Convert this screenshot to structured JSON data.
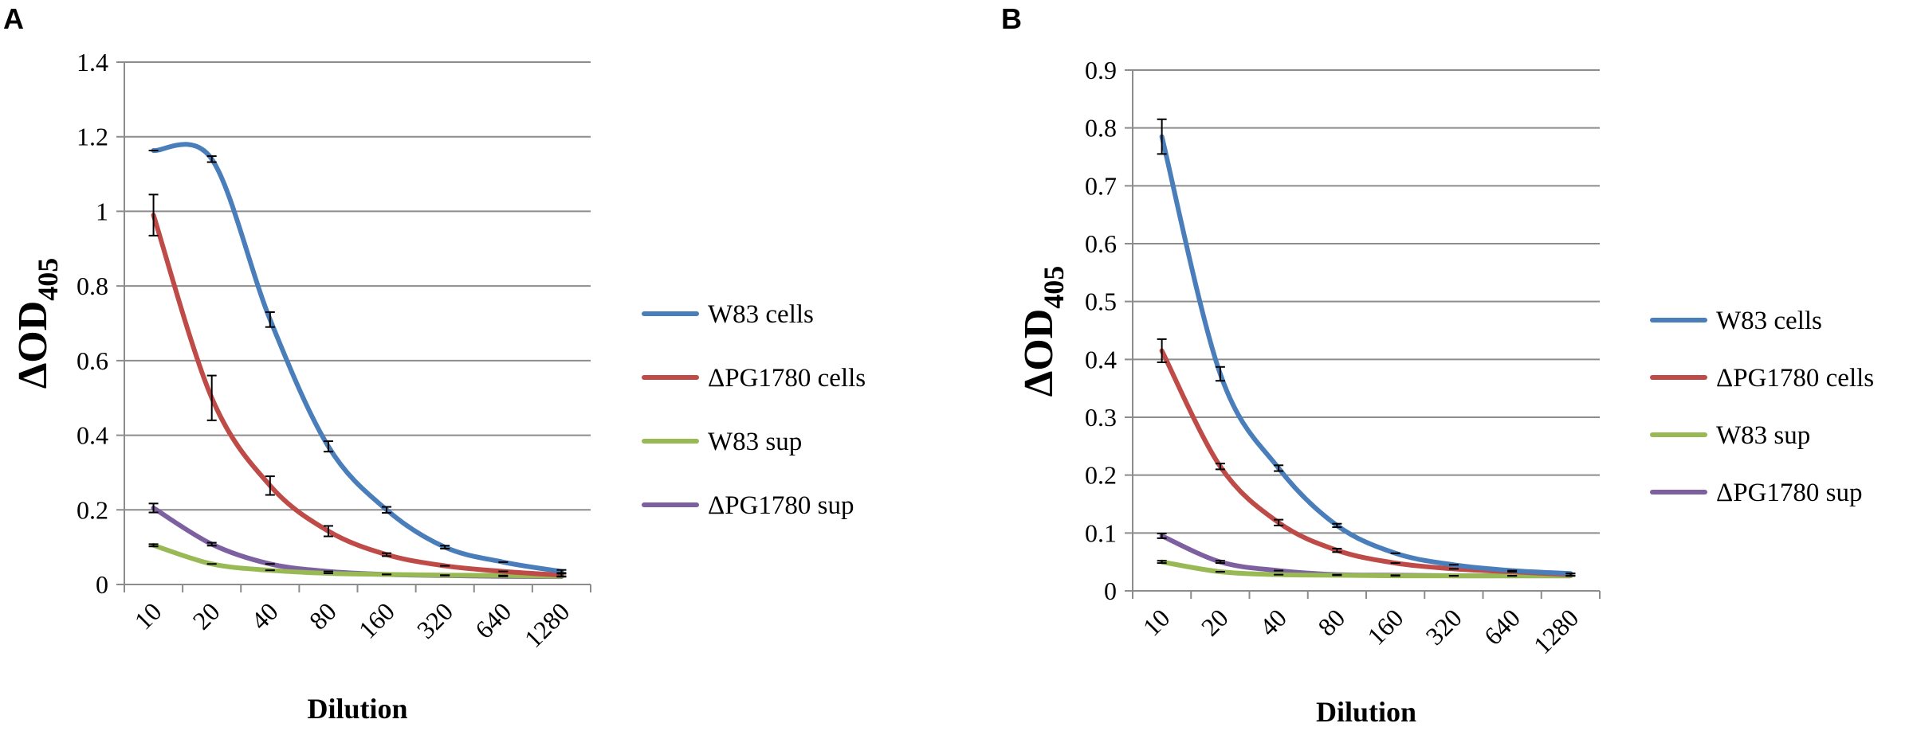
{
  "chart_data": [
    {
      "panel": "A",
      "type": "line",
      "title": "",
      "xlabel": "Dilution",
      "ylabel_main": "ΔOD",
      "ylabel_sub": "405",
      "categories": [
        "10",
        "20",
        "40",
        "80",
        "160",
        "320",
        "640",
        "1280"
      ],
      "ylim": [
        0,
        1.4
      ],
      "yticks": [
        0,
        0.2,
        0.4,
        0.6,
        0.8,
        1,
        1.2,
        1.4
      ],
      "ytick_labels": [
        "0",
        "0.2",
        "0.4",
        "0.6",
        "0.8",
        "1",
        "1.2",
        "1.4"
      ],
      "grid": true,
      "legend_position": "right",
      "series": [
        {
          "name": "W83 cells",
          "color": "#4a7ebb",
          "values": [
            1.163,
            1.14,
            0.71,
            0.37,
            0.2,
            0.1,
            0.06,
            0.035
          ],
          "errors": [
            0.0,
            0.008,
            0.02,
            0.014,
            0.008,
            0.004,
            0.0,
            0.004
          ]
        },
        {
          "name": "ΔPG1780 cells",
          "color": "#be4b48",
          "values": [
            0.99,
            0.5,
            0.265,
            0.143,
            0.08,
            0.05,
            0.035,
            0.025
          ],
          "errors": [
            0.055,
            0.06,
            0.025,
            0.014,
            0.004,
            0.0,
            0.0,
            0.004
          ]
        },
        {
          "name": "W83 sup",
          "color": "#98b954",
          "values": [
            0.105,
            0.055,
            0.038,
            0.03,
            0.027,
            0.025,
            0.024,
            0.022
          ],
          "errors": [
            0.003,
            0.0,
            0.0,
            0.0,
            0.0,
            0.0,
            0.0,
            0.0
          ]
        },
        {
          "name": "ΔPG1780 sup",
          "color": "#7d60a0",
          "values": [
            0.205,
            0.108,
            0.055,
            0.035,
            0.027,
            0.024,
            0.022,
            0.021
          ],
          "errors": [
            0.012,
            0.004,
            0.0,
            0.0,
            0.0,
            0.0,
            0.0,
            0.0
          ]
        }
      ]
    },
    {
      "panel": "B",
      "type": "line",
      "title": "",
      "xlabel": "Dilution",
      "ylabel_main": "ΔOD",
      "ylabel_sub": "405",
      "categories": [
        "10",
        "20",
        "40",
        "80",
        "160",
        "320",
        "640",
        "1280"
      ],
      "ylim": [
        0,
        0.9
      ],
      "yticks": [
        0,
        0.1,
        0.2,
        0.3,
        0.4,
        0.5,
        0.6,
        0.7,
        0.8,
        0.9
      ],
      "ytick_labels": [
        "0",
        "0.1",
        "0.2",
        "0.3",
        "0.4",
        "0.5",
        "0.6",
        "0.7",
        "0.8",
        "0.9"
      ],
      "grid": true,
      "legend_position": "right",
      "series": [
        {
          "name": "W83 cells",
          "color": "#4a7ebb",
          "values": [
            0.785,
            0.375,
            0.212,
            0.113,
            0.065,
            0.045,
            0.035,
            0.03
          ],
          "errors": [
            0.03,
            0.012,
            0.005,
            0.003,
            0.0,
            0.0,
            0.0,
            0.0
          ]
        },
        {
          "name": "ΔPG1780 cells",
          "color": "#be4b48",
          "values": [
            0.415,
            0.215,
            0.118,
            0.07,
            0.048,
            0.038,
            0.033,
            0.028
          ],
          "errors": [
            0.02,
            0.005,
            0.005,
            0.003,
            0.0,
            0.0,
            0.0,
            0.002
          ]
        },
        {
          "name": "W83 sup",
          "color": "#98b954",
          "values": [
            0.05,
            0.033,
            0.028,
            0.027,
            0.026,
            0.026,
            0.026,
            0.026
          ],
          "errors": [
            0.002,
            0.0,
            0.0,
            0.0,
            0.0,
            0.0,
            0.0,
            0.0
          ]
        },
        {
          "name": "ΔPG1780 sup",
          "color": "#7d60a0",
          "values": [
            0.095,
            0.05,
            0.035,
            0.028,
            0.027,
            0.026,
            0.026,
            0.026
          ],
          "errors": [
            0.004,
            0.002,
            0.0,
            0.0,
            0.0,
            0.0,
            0.0,
            0.0
          ]
        }
      ]
    }
  ]
}
